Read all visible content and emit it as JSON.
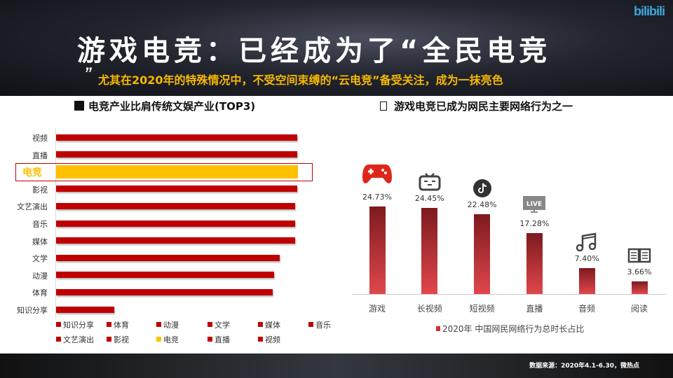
{
  "header": {
    "logo": "bilibili",
    "title": "游戏电竞：已经成为了“全民电竞",
    "title_close_quote": "”",
    "subtitle": "尤其在2020年的特殊情况中，不受空间束缚的“云电竞”备受关注，成为一抹亮色"
  },
  "footer": {
    "source": "数据来源：2020年4.1-6.30，微热点"
  },
  "colors": {
    "bar": "#c00000",
    "highlight": "#ffc000",
    "vbar_top": "#7d1a1e",
    "vbar_bottom": "#e0474c"
  },
  "chart_data": [
    {
      "type": "bar",
      "orientation": "horizontal",
      "title": "电竞产业比肩传统文娱产业(TOP3)",
      "categories": [
        "视频",
        "直播",
        "电竞",
        "影视",
        "文艺演出",
        "音乐",
        "媒体",
        "文学",
        "动漫",
        "体育",
        "知识分享"
      ],
      "values": [
        100,
        100,
        100.3,
        100,
        99,
        99,
        99,
        92.6,
        90.4,
        89.9,
        24.2
      ],
      "highlight": "电竞",
      "xlabel": "",
      "ylabel": "",
      "note": "relative values, no axis shown",
      "legend": [
        "知识分享",
        "体育",
        "动漫",
        "文学",
        "媒体",
        "音乐",
        "文艺演出",
        "影视",
        "电竞",
        "直播",
        "视频"
      ],
      "legend_position": "bottom"
    },
    {
      "type": "bar",
      "title": "游戏电竞已成为网民主要网络行为之一",
      "categories": [
        "游戏",
        "长视频",
        "短视频",
        "直播",
        "音频",
        "阅读"
      ],
      "values": [
        24.73,
        24.45,
        22.48,
        17.28,
        7.4,
        3.66
      ],
      "labels": [
        "24.73%",
        "24.45%",
        "22.48%",
        "17.28%",
        "7.40%",
        "3.66%"
      ],
      "icons": [
        "gamepad-icon",
        "bilibili-tv-icon",
        "tiktok-icon",
        "live-tv-icon",
        "music-note-icon",
        "book-icon"
      ],
      "series_name": "2020年 中国网民网络行为总时长占比",
      "legend_position": "bottom",
      "ylim": [
        0,
        25
      ]
    }
  ]
}
